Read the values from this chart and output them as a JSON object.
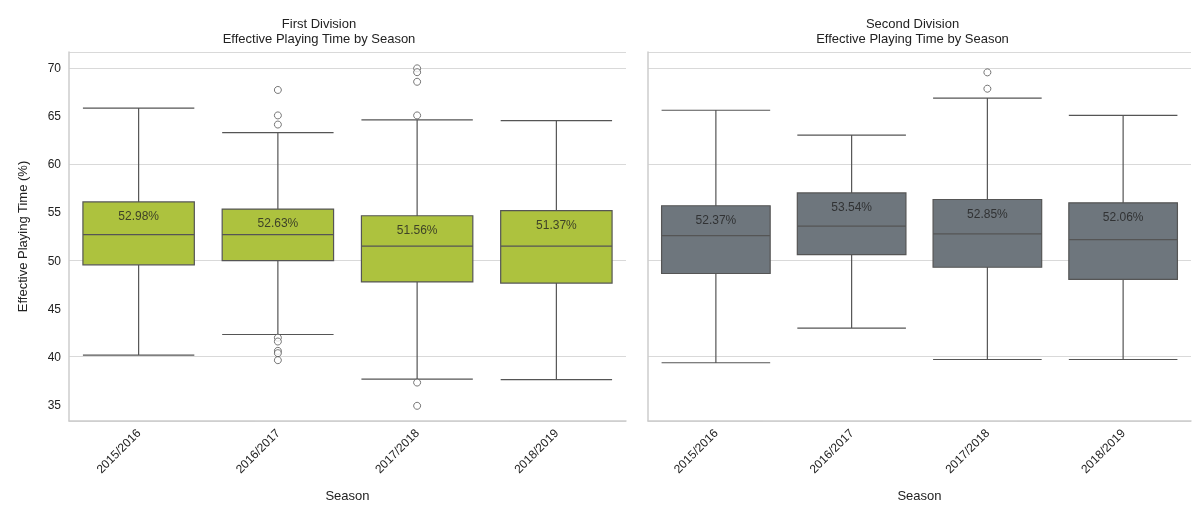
{
  "chart_data": [
    {
      "type": "box",
      "title": "First Division",
      "subtitle": "Effective Playing Time by Season",
      "xlabel": "Season",
      "ylabel": "Effective Playing Time (%)",
      "categories": [
        "2015/2016",
        "2016/2017",
        "2017/2018",
        "2018/2019"
      ],
      "ylim": [
        33.3,
        71.7
      ],
      "yticks": [
        35,
        40,
        45,
        50,
        55,
        60,
        65,
        70
      ],
      "grid": "y",
      "series": [
        {
          "color": "#adc23e",
          "value_labels": [
            "52.98%",
            "52.63%",
            "51.56%",
            "51.37%"
          ],
          "boxes": [
            {
              "low": 40.15,
              "q1": 49.55,
              "median": 52.7,
              "q3": 56.1,
              "high": 65.85
            },
            {
              "low": 42.3,
              "q1": 49.98,
              "median": 52.7,
              "q3": 55.35,
              "high": 63.3,
              "outliers": [
                67.75,
                65.1,
                64.15,
                41.97,
                41.57,
                40.6,
                40.36,
                39.63
              ]
            },
            {
              "low": 37.66,
              "q1": 47.77,
              "median": 51.5,
              "q3": 54.66,
              "high": 64.64,
              "outliers": [
                70,
                69.6,
                68.6,
                65.1,
                37.3,
                34.88
              ]
            },
            {
              "low": 37.6,
              "q1": 47.65,
              "median": 51.5,
              "q3": 55.2,
              "high": 64.56
            }
          ]
        }
      ]
    },
    {
      "type": "box",
      "title": "Second Division",
      "subtitle": "Effective Playing Time by Season",
      "xlabel": "Season",
      "categories": [
        "2015/2016",
        "2016/2017",
        "2017/2018",
        "2018/2019"
      ],
      "ylim": [
        33.3,
        71.7
      ],
      "yticks": [
        35,
        40,
        45,
        50,
        55,
        60,
        65,
        70
      ],
      "grid": "y",
      "tick_labels": "x",
      "series": [
        {
          "color": "#6e767d",
          "value_labels": [
            "52.37%",
            "53.54%",
            "52.85%",
            "52.06%"
          ],
          "boxes": [
            {
              "low": 39.36,
              "q1": 48.65,
              "median": 52.6,
              "q3": 55.7,
              "high": 65.64
            },
            {
              "low": 42.96,
              "q1": 50.62,
              "median": 53.58,
              "q3": 57.03,
              "high": 63.06
            },
            {
              "low": 39.7,
              "q1": 49.3,
              "median": 52.78,
              "q3": 56.35,
              "high": 66.89,
              "outliers": [
                69.58,
                67.88
              ]
            },
            {
              "low": 39.7,
              "q1": 48.04,
              "median": 52.18,
              "q3": 56.0,
              "high": 65.1
            }
          ]
        }
      ]
    }
  ]
}
